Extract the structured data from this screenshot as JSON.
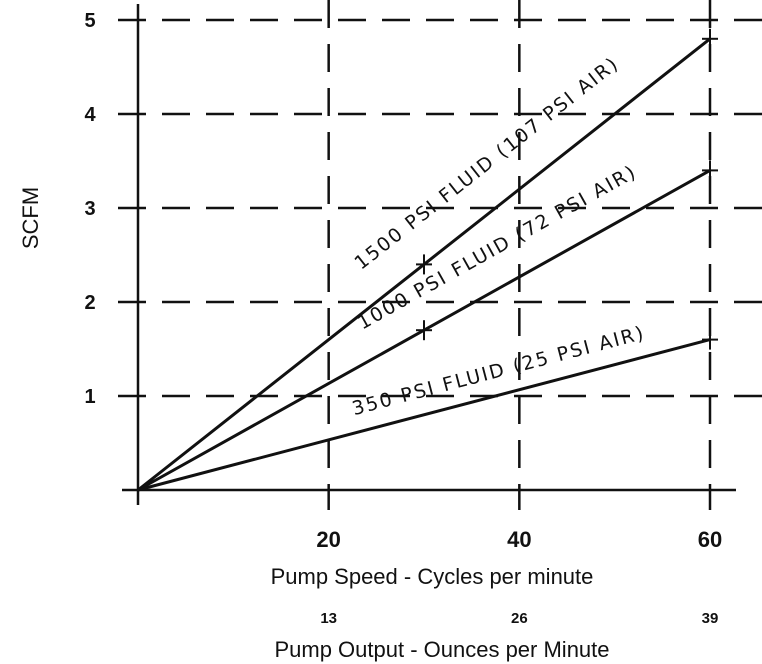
{
  "chart_data": {
    "type": "line",
    "ylabel": "SCFM",
    "xlabel": "Pump Speed - Cycles per minute",
    "x2label": "Pump Output - Ounces per Minute",
    "xlim": [
      0,
      60
    ],
    "ylim": [
      0,
      5
    ],
    "xticks": [
      20,
      40,
      60
    ],
    "yticks": [
      1,
      2,
      3,
      4,
      5
    ],
    "x2ticks": [
      "13",
      "26",
      "39"
    ],
    "grid": true,
    "series": [
      {
        "name": "1500 PSI FLUID (107 PSI AIR)",
        "x": [
          0,
          30,
          60
        ],
        "y": [
          0,
          2.4,
          4.8
        ],
        "markers_at": [
          30,
          60
        ]
      },
      {
        "name": "1000 PSI FLUID (72 PSI AIR)",
        "x": [
          0,
          30,
          60
        ],
        "y": [
          0,
          1.7,
          3.4
        ],
        "markers_at": [
          30,
          60
        ]
      },
      {
        "name": "350 PSI FLUID (25 PSI AIR)",
        "x": [
          0,
          60
        ],
        "y": [
          0,
          1.6
        ],
        "markers_at": [
          60
        ]
      }
    ]
  }
}
